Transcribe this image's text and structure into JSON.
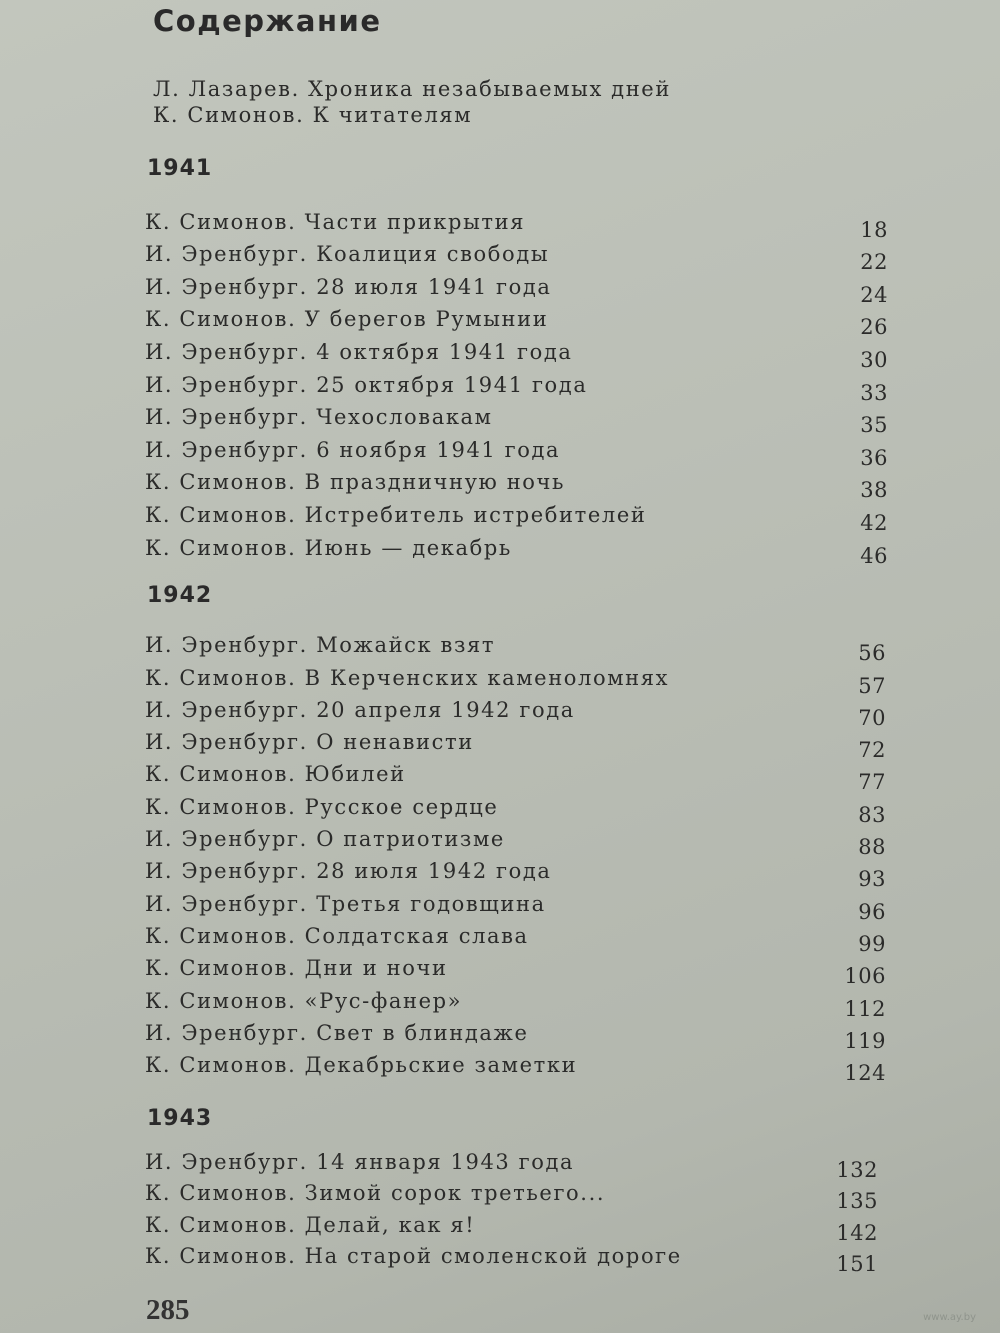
{
  "title": "Содержание",
  "intro": [
    "Л. Лазарев. Хроника незабываемых дней",
    "К. Симонов. К читателям"
  ],
  "sections": [
    {
      "year": "1941",
      "entries": [
        {
          "title": "К. Симонов. Части прикрытия",
          "page": "18"
        },
        {
          "title": "И. Эренбург. Коалиция свободы",
          "page": "22"
        },
        {
          "title": "И. Эренбург. 28 июля 1941 года",
          "page": "24"
        },
        {
          "title": "К. Симонов. У берегов Румынии",
          "page": "26"
        },
        {
          "title": "И. Эренбург. 4 октября 1941 года",
          "page": "30"
        },
        {
          "title": "И. Эренбург. 25 октября 1941 года",
          "page": "33"
        },
        {
          "title": "И. Эренбург. Чехословакам",
          "page": "35"
        },
        {
          "title": "И. Эренбург. 6 ноября 1941 года",
          "page": "36"
        },
        {
          "title": "К. Симонов. В праздничную ночь",
          "page": "38"
        },
        {
          "title": "К. Симонов. Истребитель истребителей",
          "page": "42"
        },
        {
          "title": "К. Симонов. Июнь — декабрь",
          "page": "46"
        }
      ]
    },
    {
      "year": "1942",
      "entries": [
        {
          "title": "И. Эренбург. Можайск взят",
          "page": "56"
        },
        {
          "title": "К. Симонов. В Керченских каменоломнях",
          "page": "57"
        },
        {
          "title": "И. Эренбург. 20 апреля 1942 года",
          "page": "70"
        },
        {
          "title": "И. Эренбург. О ненависти",
          "page": "72"
        },
        {
          "title": "К. Симонов. Юбилей",
          "page": "77"
        },
        {
          "title": "К. Симонов. Русское сердце",
          "page": "83"
        },
        {
          "title": "И. Эренбург. О патриотизме",
          "page": "88"
        },
        {
          "title": "И. Эренбург. 28 июля 1942 года",
          "page": "93"
        },
        {
          "title": "И. Эренбург. Третья годовщина",
          "page": "96"
        },
        {
          "title": "К. Симонов. Солдатская слава",
          "page": "99"
        },
        {
          "title": "К. Симонов. Дни и ночи",
          "page": "106"
        },
        {
          "title": "К. Симонов. «Рус-фанер»",
          "page": "112"
        },
        {
          "title": "И. Эренбург. Свет в блиндаже",
          "page": "119"
        },
        {
          "title": "К. Симонов. Декабрьские заметки",
          "page": "124"
        }
      ]
    },
    {
      "year": "1943",
      "entries": [
        {
          "title": "И. Эренбург. 14 января 1943 года",
          "page": "132"
        },
        {
          "title": "К. Симонов. Зимой сорок третьего...",
          "page": "135"
        },
        {
          "title": "К. Симонов. Делай, как я!",
          "page": "142"
        },
        {
          "title": "К. Симонов. На старой смоленской дороге",
          "page": "151"
        }
      ]
    }
  ],
  "page_number": "285",
  "watermark": "www.ay.by"
}
